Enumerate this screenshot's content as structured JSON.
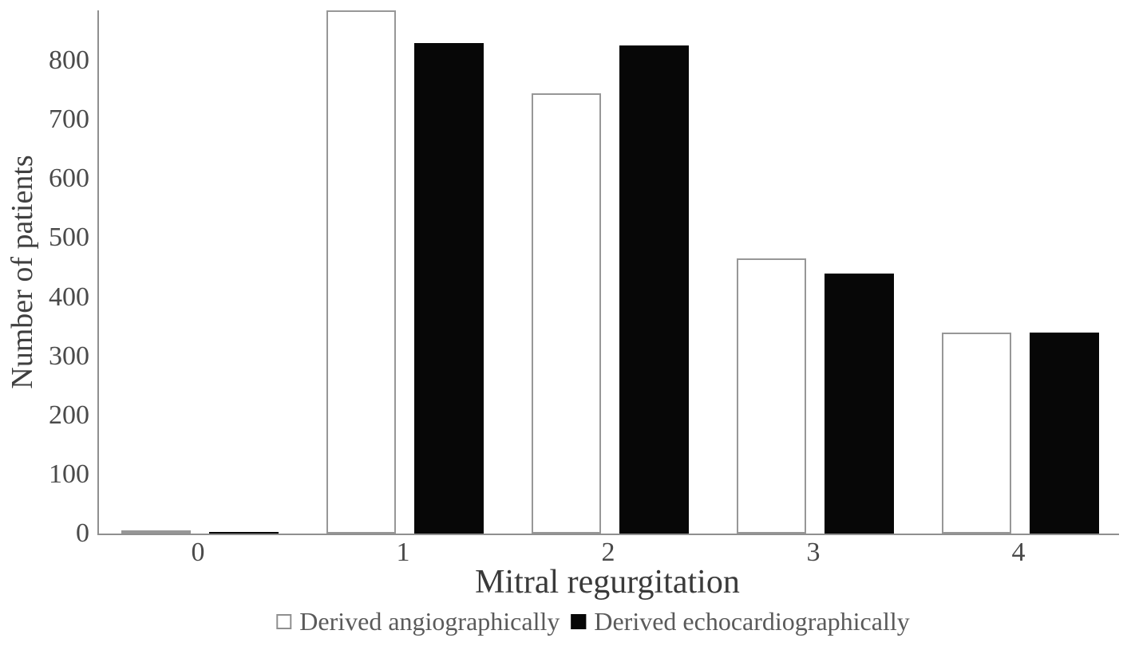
{
  "chart_data": {
    "type": "bar",
    "title": "",
    "categories": [
      "0",
      "1",
      "2",
      "3",
      "4"
    ],
    "series": [
      {
        "name": "Derived angiographically",
        "values": [
          5,
          885,
          745,
          465,
          340
        ],
        "fill": "#ffffff",
        "border": "#979797"
      },
      {
        "name": "Derived echocardiographically",
        "values": [
          3,
          830,
          825,
          440,
          340
        ],
        "fill": "#070707",
        "border": "#070707"
      }
    ],
    "xlabel": "Mitral regurgitation",
    "ylabel": "Number of patients",
    "ylim": [
      0,
      885
    ],
    "yticks": [
      0,
      100,
      200,
      300,
      400,
      500,
      600,
      700,
      800
    ],
    "grid": false,
    "legend_position": "bottom"
  },
  "colors": {
    "background": "#ffffff",
    "axis": "#8f8f8f",
    "bar_outline": "#979797",
    "bar_black": "#070707",
    "tick_text": "#4a4a4a",
    "title_text": "#3a3a3a",
    "legend_text": "#5a5a5a"
  }
}
